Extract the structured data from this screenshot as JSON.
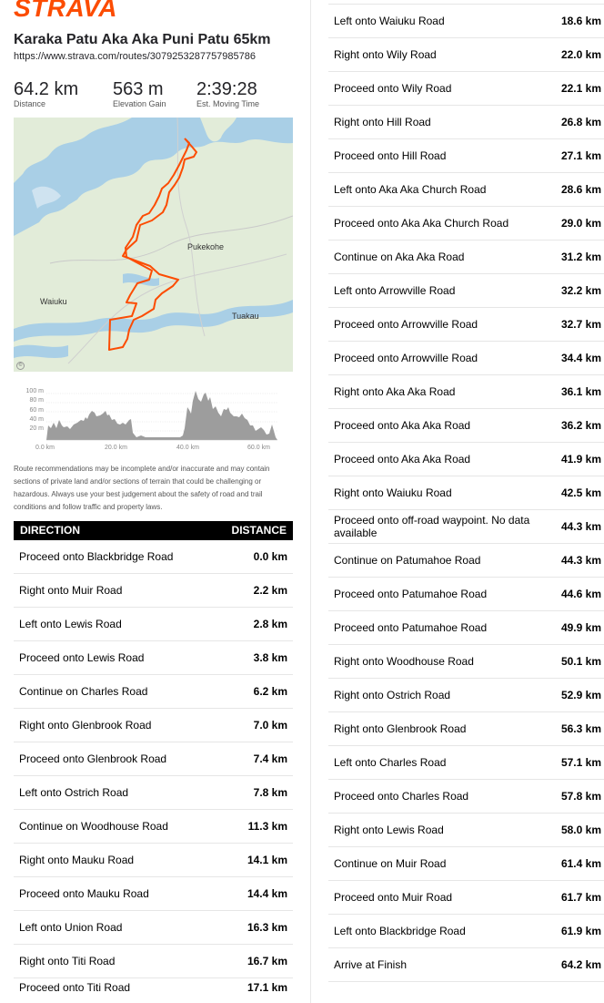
{
  "header": {
    "logo": "STRAVA",
    "title": "Karaka Patu Aka Aka Puni Patu 65km",
    "url": "https://www.strava.com/routes/3079253287757985786"
  },
  "stats": [
    {
      "value": "64.2 km",
      "label": "Distance"
    },
    {
      "value": "563 m",
      "label": "Elevation Gain"
    },
    {
      "value": "2:39:28",
      "label": "Est. Moving Time"
    }
  ],
  "map": {
    "labels": {
      "pukekohe": "Pukekohe",
      "waiuku": "Waiuku",
      "tuakau": "Tuakau"
    },
    "route_color": "#fc4c02",
    "water_color": "#a9cfe6",
    "land_color": "#e2ecd9"
  },
  "elevation": {
    "y_ticks": [
      "100 m",
      "80 m",
      "60 m",
      "40 m",
      "20 m"
    ],
    "x_ticks": [
      "0.0 km",
      "20.0 km",
      "40.0 km",
      "60.0 km",
      "80.0 km"
    ]
  },
  "disclaimer": "Route recommendations may be incomplete and/or inaccurate and may contain sections of private land and/or sections of terrain that could be challenging or hazardous. Always use your best judgement about the safety of road and trail conditions and follow traffic and property laws.",
  "table": {
    "direction_header": "DIRECTION",
    "distance_header": "DISTANCE",
    "left_rows": [
      {
        "instruction": "Proceed onto Blackbridge Road",
        "distance": "0.0 km"
      },
      {
        "instruction": "Right onto Muir Road",
        "distance": "2.2 km"
      },
      {
        "instruction": "Left onto Lewis Road",
        "distance": "2.8 km"
      },
      {
        "instruction": "Proceed onto Lewis Road",
        "distance": "3.8 km"
      },
      {
        "instruction": "Continue on Charles Road",
        "distance": "6.2 km"
      },
      {
        "instruction": "Right onto Glenbrook Road",
        "distance": "7.0 km"
      },
      {
        "instruction": "Proceed onto Glenbrook Road",
        "distance": "7.4 km"
      },
      {
        "instruction": "Left onto Ostrich Road",
        "distance": "7.8 km"
      },
      {
        "instruction": "Continue on Woodhouse Road",
        "distance": "11.3 km"
      },
      {
        "instruction": "Right onto Mauku Road",
        "distance": "14.1 km"
      },
      {
        "instruction": "Proceed onto Mauku Road",
        "distance": "14.4 km"
      },
      {
        "instruction": "Left onto Union Road",
        "distance": "16.3 km"
      },
      {
        "instruction": "Right onto Titi Road",
        "distance": "16.7 km"
      },
      {
        "instruction": "Proceed onto Titi Road",
        "distance": "17.1 km"
      }
    ],
    "right_rows": [
      {
        "instruction": "Left onto Waiuku Road",
        "distance": "18.6 km"
      },
      {
        "instruction": "Right onto Wily Road",
        "distance": "22.0 km"
      },
      {
        "instruction": "Proceed onto Wily Road",
        "distance": "22.1 km"
      },
      {
        "instruction": "Right onto Hill Road",
        "distance": "26.8 km"
      },
      {
        "instruction": "Proceed onto Hill Road",
        "distance": "27.1 km"
      },
      {
        "instruction": "Left onto Aka Aka Church Road",
        "distance": "28.6 km"
      },
      {
        "instruction": "Proceed onto Aka Aka Church Road",
        "distance": "29.0 km"
      },
      {
        "instruction": "Continue on Aka Aka Road",
        "distance": "31.2 km"
      },
      {
        "instruction": "Left onto Arrowville Road",
        "distance": "32.2 km"
      },
      {
        "instruction": "Proceed onto Arrowville Road",
        "distance": "32.7 km"
      },
      {
        "instruction": "Proceed onto Arrowville Road",
        "distance": "34.4 km"
      },
      {
        "instruction": "Right onto Aka Aka Road",
        "distance": "36.1 km"
      },
      {
        "instruction": "Proceed onto Aka Aka Road",
        "distance": "36.2 km"
      },
      {
        "instruction": "Proceed onto Aka Aka Road",
        "distance": "41.9 km"
      },
      {
        "instruction": "Right onto Waiuku Road",
        "distance": "42.5 km"
      },
      {
        "instruction": "Proceed onto off-road waypoint. No data available",
        "distance": "44.3 km"
      },
      {
        "instruction": "Continue on Patumahoe Road",
        "distance": "44.3 km"
      },
      {
        "instruction": "Proceed onto Patumahoe Road",
        "distance": "44.6 km"
      },
      {
        "instruction": "Proceed onto Patumahoe Road",
        "distance": "49.9 km"
      },
      {
        "instruction": "Right onto Woodhouse Road",
        "distance": "50.1 km"
      },
      {
        "instruction": "Right onto Ostrich Road",
        "distance": "52.9 km"
      },
      {
        "instruction": "Right onto Glenbrook Road",
        "distance": "56.3 km"
      },
      {
        "instruction": "Left onto Charles Road",
        "distance": "57.1 km"
      },
      {
        "instruction": "Proceed onto Charles Road",
        "distance": "57.8 km"
      },
      {
        "instruction": "Right onto Lewis Road",
        "distance": "58.0 km"
      },
      {
        "instruction": "Continue on Muir Road",
        "distance": "61.4 km"
      },
      {
        "instruction": "Proceed onto Muir Road",
        "distance": "61.7 km"
      },
      {
        "instruction": "Left onto Blackbridge Road",
        "distance": "61.9 km"
      },
      {
        "instruction": "Arrive at Finish",
        "distance": "64.2 km"
      }
    ]
  }
}
